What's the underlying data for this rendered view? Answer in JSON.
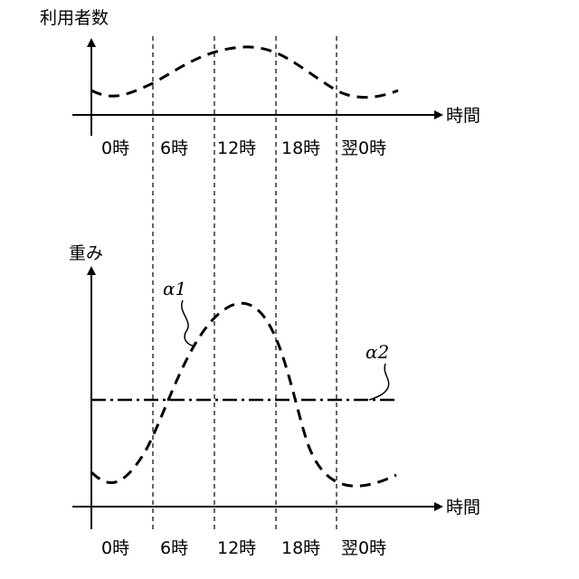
{
  "top_chart": {
    "y_axis_label": "利用者数",
    "x_axis_label": "時間",
    "time_labels": [
      "0時",
      "6時",
      "12時",
      "18時",
      "翌0時"
    ]
  },
  "bottom_chart": {
    "y_axis_label": "重み",
    "x_axis_label": "時間",
    "time_labels": [
      "0時",
      "6時",
      "12時",
      "18時",
      "翌0時"
    ],
    "curve_labels": {
      "alpha1": "α1",
      "alpha2": "α2"
    }
  },
  "colors": {
    "ink": "#000000",
    "background": "#ffffff"
  }
}
